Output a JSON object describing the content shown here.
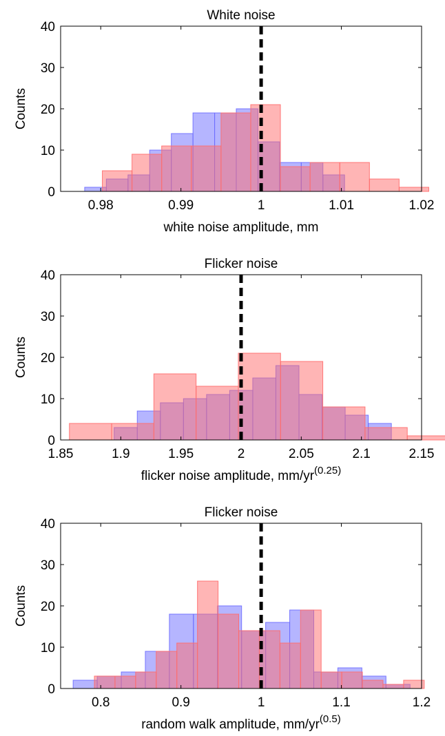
{
  "chart_data": [
    {
      "type": "bar",
      "title": "White noise",
      "xlabel": "white noise amplitude, mm",
      "xlabel_sup": "",
      "ylabel": "Counts",
      "xlim": [
        0.975,
        1.02
      ],
      "ylim": [
        0,
        40
      ],
      "xticks": [
        0.98,
        0.99,
        1,
        1.01,
        1.02
      ],
      "xtick_labels": [
        "0.98",
        "0.99",
        "1",
        "1.01",
        "1.02"
      ],
      "yticks": [
        0,
        10,
        20,
        30,
        40
      ],
      "ytick_labels": [
        "0",
        "10",
        "20",
        "30",
        "40"
      ],
      "reference_line": 1.0,
      "series": [
        {
          "color": "#6b6bff",
          "edges": [
            0.978,
            0.9807,
            0.9834,
            0.9861,
            0.9888,
            0.9915,
            0.9942,
            0.9969,
            0.9996,
            1.0023,
            1.005,
            1.0077,
            1.0104,
            1.0131
          ],
          "counts": [
            1,
            3,
            4,
            10,
            14,
            19,
            19,
            20,
            12,
            7,
            7,
            4,
            0
          ]
        },
        {
          "color": "#ff6b6b",
          "edges": [
            0.9802,
            0.9839,
            0.9876,
            0.9913,
            0.995,
            0.9987,
            1.0024,
            1.0061,
            1.0098,
            1.0135,
            1.0172,
            1.0209
          ],
          "counts": [
            5,
            9,
            11,
            11,
            19,
            21,
            6,
            7,
            7,
            3,
            1
          ]
        }
      ]
    },
    {
      "type": "bar",
      "title": "Flicker noise",
      "xlabel": "flicker noise amplitude, mm/yr",
      "xlabel_sup": "(0.25)",
      "ylabel": "Counts",
      "xlim": [
        1.85,
        2.15
      ],
      "ylim": [
        0,
        40
      ],
      "xticks": [
        1.85,
        1.9,
        1.95,
        2,
        2.05,
        2.1,
        2.15
      ],
      "xtick_labels": [
        "1.85",
        "1.9",
        "1.95",
        "2",
        "2.05",
        "2.1",
        "2.15"
      ],
      "yticks": [
        0,
        10,
        20,
        30,
        40
      ],
      "ytick_labels": [
        "0",
        "10",
        "20",
        "30",
        "40"
      ],
      "reference_line": 2.0,
      "series": [
        {
          "color": "#6b6bff",
          "edges": [
            1.8945,
            1.9137,
            1.9329,
            1.9521,
            1.9713,
            1.9905,
            2.0097,
            2.0289,
            2.0481,
            2.0673,
            2.0865,
            2.1057,
            2.1249,
            2.1441
          ],
          "counts": [
            3,
            7,
            9,
            10,
            11,
            12,
            15,
            18,
            11,
            8,
            6,
            4,
            0
          ]
        },
        {
          "color": "#ff6b6b",
          "edges": [
            1.8573,
            1.8924,
            1.9275,
            1.9626,
            1.9977,
            2.0328,
            2.0679,
            2.103,
            2.1381,
            2.1732
          ],
          "counts": [
            4,
            4,
            16,
            13,
            21,
            19,
            8,
            3,
            1
          ]
        }
      ]
    },
    {
      "type": "bar",
      "title": "Flicker noise",
      "xlabel": "random walk amplitude, mm/yr",
      "xlabel_sup": "(0.5)",
      "ylabel": "Counts",
      "xlim": [
        0.75,
        1.2
      ],
      "ylim": [
        0,
        40
      ],
      "xticks": [
        0.8,
        0.9,
        1,
        1.1,
        1.2
      ],
      "xtick_labels": [
        "0.8",
        "0.9",
        "1",
        "1.1",
        "1.2"
      ],
      "yticks": [
        0,
        10,
        20,
        30,
        40
      ],
      "ytick_labels": [
        "0",
        "10",
        "20",
        "30",
        "40"
      ],
      "reference_line": 1.0,
      "series": [
        {
          "color": "#6b6bff",
          "edges": [
            0.7656,
            0.7956,
            0.8256,
            0.8556,
            0.8856,
            0.9156,
            0.9456,
            0.9756,
            1.0056,
            1.0356,
            1.0656,
            1.0956,
            1.1256,
            1.1556,
            1.1856
          ],
          "counts": [
            2,
            3,
            4,
            9,
            18,
            18,
            20,
            14,
            16,
            19,
            4,
            5,
            3,
            1
          ]
        },
        {
          "color": "#ff6b6b",
          "edges": [
            0.7921,
            0.8178,
            0.8435,
            0.8692,
            0.8949,
            0.9206,
            0.9463,
            0.972,
            0.9977,
            1.0234,
            1.0491,
            1.0748,
            1.1005,
            1.1262,
            1.1519,
            1.1776,
            1.2033
          ],
          "counts": [
            3,
            3,
            4,
            9,
            11,
            26,
            18,
            14,
            14,
            11,
            19,
            4,
            4,
            2,
            1,
            2
          ]
        }
      ]
    }
  ]
}
